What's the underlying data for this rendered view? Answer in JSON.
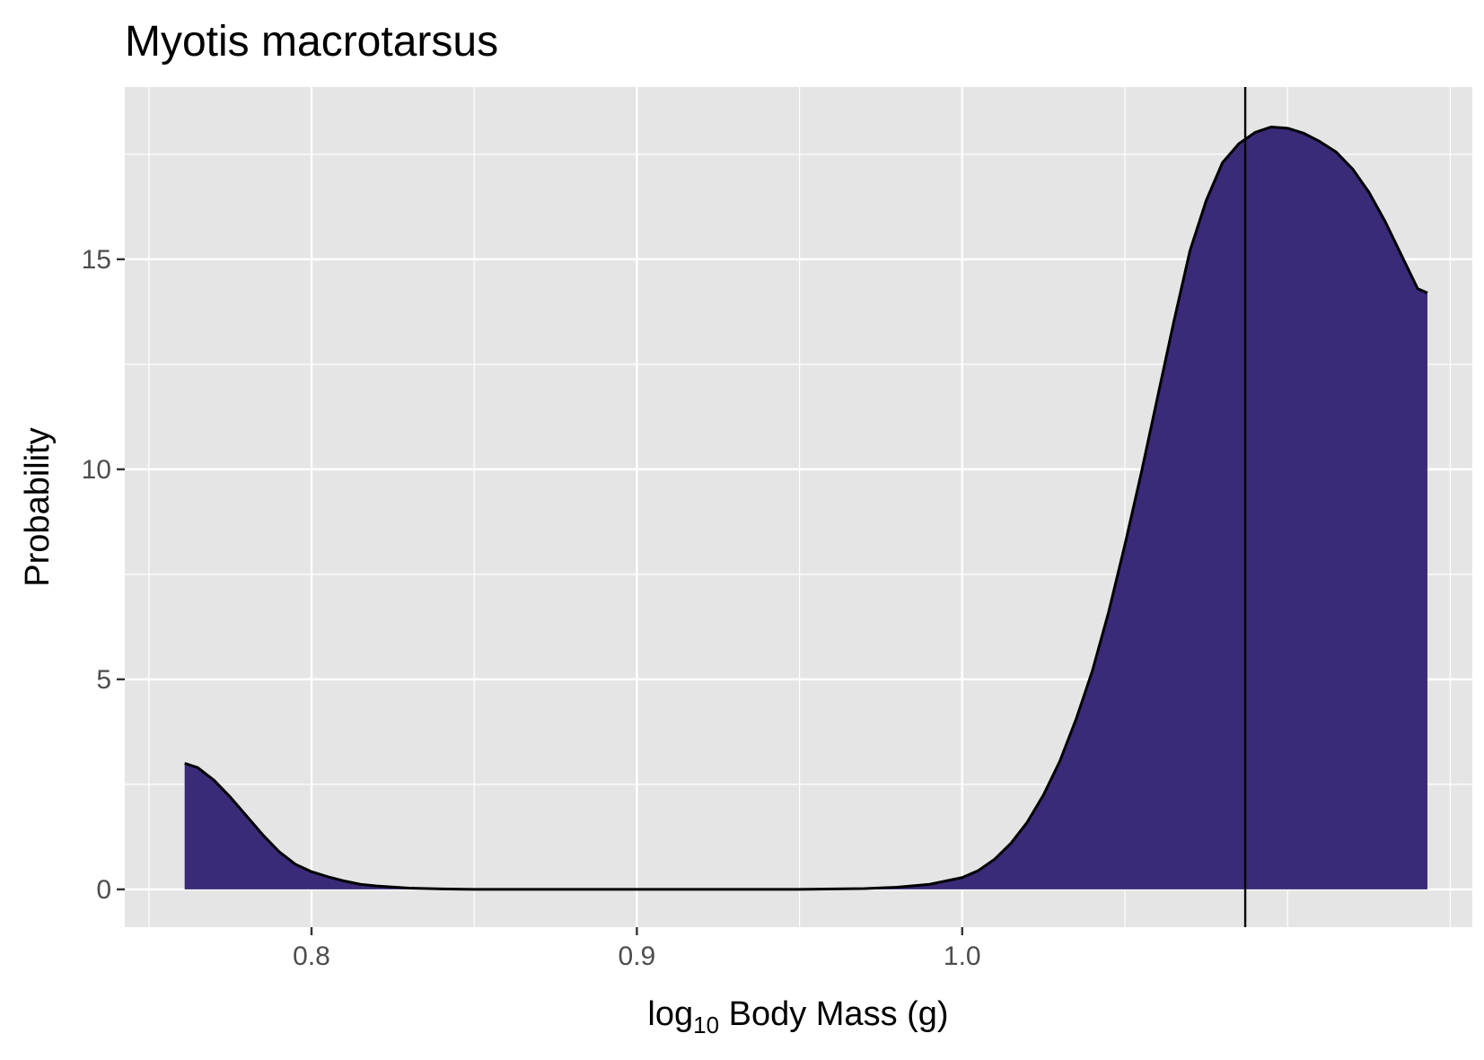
{
  "chart_data": {
    "type": "area",
    "title": "Myotis macrotarsus",
    "xlabel": {
      "prefix": "log",
      "subscript": "10",
      "suffix": " Body Mass (g)"
    },
    "ylabel": "Probability",
    "xlim": [
      0.7426,
      1.1568
    ],
    "ylim": [
      -0.9,
      19.1
    ],
    "x_ticks": [
      0.8,
      0.9,
      1.0
    ],
    "x_tick_labels": [
      "0.8",
      "0.9",
      "1.0"
    ],
    "x_minor_ticks": [
      0.75,
      0.85,
      0.95,
      1.05,
      1.1,
      1.15
    ],
    "y_ticks": [
      0,
      5,
      10,
      15
    ],
    "y_tick_labels": [
      "0",
      "5",
      "10",
      "15"
    ],
    "y_minor_ticks": [
      2.5,
      7.5,
      12.5,
      17.5
    ],
    "grid": true,
    "legend": "none",
    "vline_x": 1.087,
    "fill_color": "#3a2a78",
    "line_color": "#000000",
    "panel_color": "#e5e5e5",
    "series": [
      {
        "x": [
          0.761,
          0.765,
          0.77,
          0.775,
          0.78,
          0.785,
          0.79,
          0.795,
          0.8,
          0.805,
          0.81,
          0.815,
          0.82,
          0.83,
          0.84,
          0.85,
          0.9,
          0.95,
          0.97,
          0.98,
          0.99,
          1.0,
          1.005,
          1.01,
          1.015,
          1.02,
          1.025,
          1.03,
          1.035,
          1.04,
          1.045,
          1.05,
          1.055,
          1.06,
          1.065,
          1.07,
          1.075,
          1.08,
          1.085,
          1.09,
          1.095,
          1.1,
          1.105,
          1.11,
          1.115,
          1.12,
          1.125,
          1.13,
          1.135,
          1.14,
          1.143
        ],
        "y": [
          3.0,
          2.9,
          2.6,
          2.2,
          1.75,
          1.3,
          0.9,
          0.6,
          0.42,
          0.3,
          0.2,
          0.12,
          0.08,
          0.03,
          0.01,
          0.0,
          0.0,
          0.0,
          0.02,
          0.05,
          0.12,
          0.28,
          0.45,
          0.72,
          1.1,
          1.6,
          2.25,
          3.05,
          4.05,
          5.2,
          6.6,
          8.2,
          9.9,
          11.7,
          13.5,
          15.2,
          16.4,
          17.3,
          17.75,
          18.02,
          18.15,
          18.12,
          18.0,
          17.8,
          17.55,
          17.15,
          16.6,
          15.9,
          15.1,
          14.3,
          14.2
        ]
      }
    ]
  }
}
